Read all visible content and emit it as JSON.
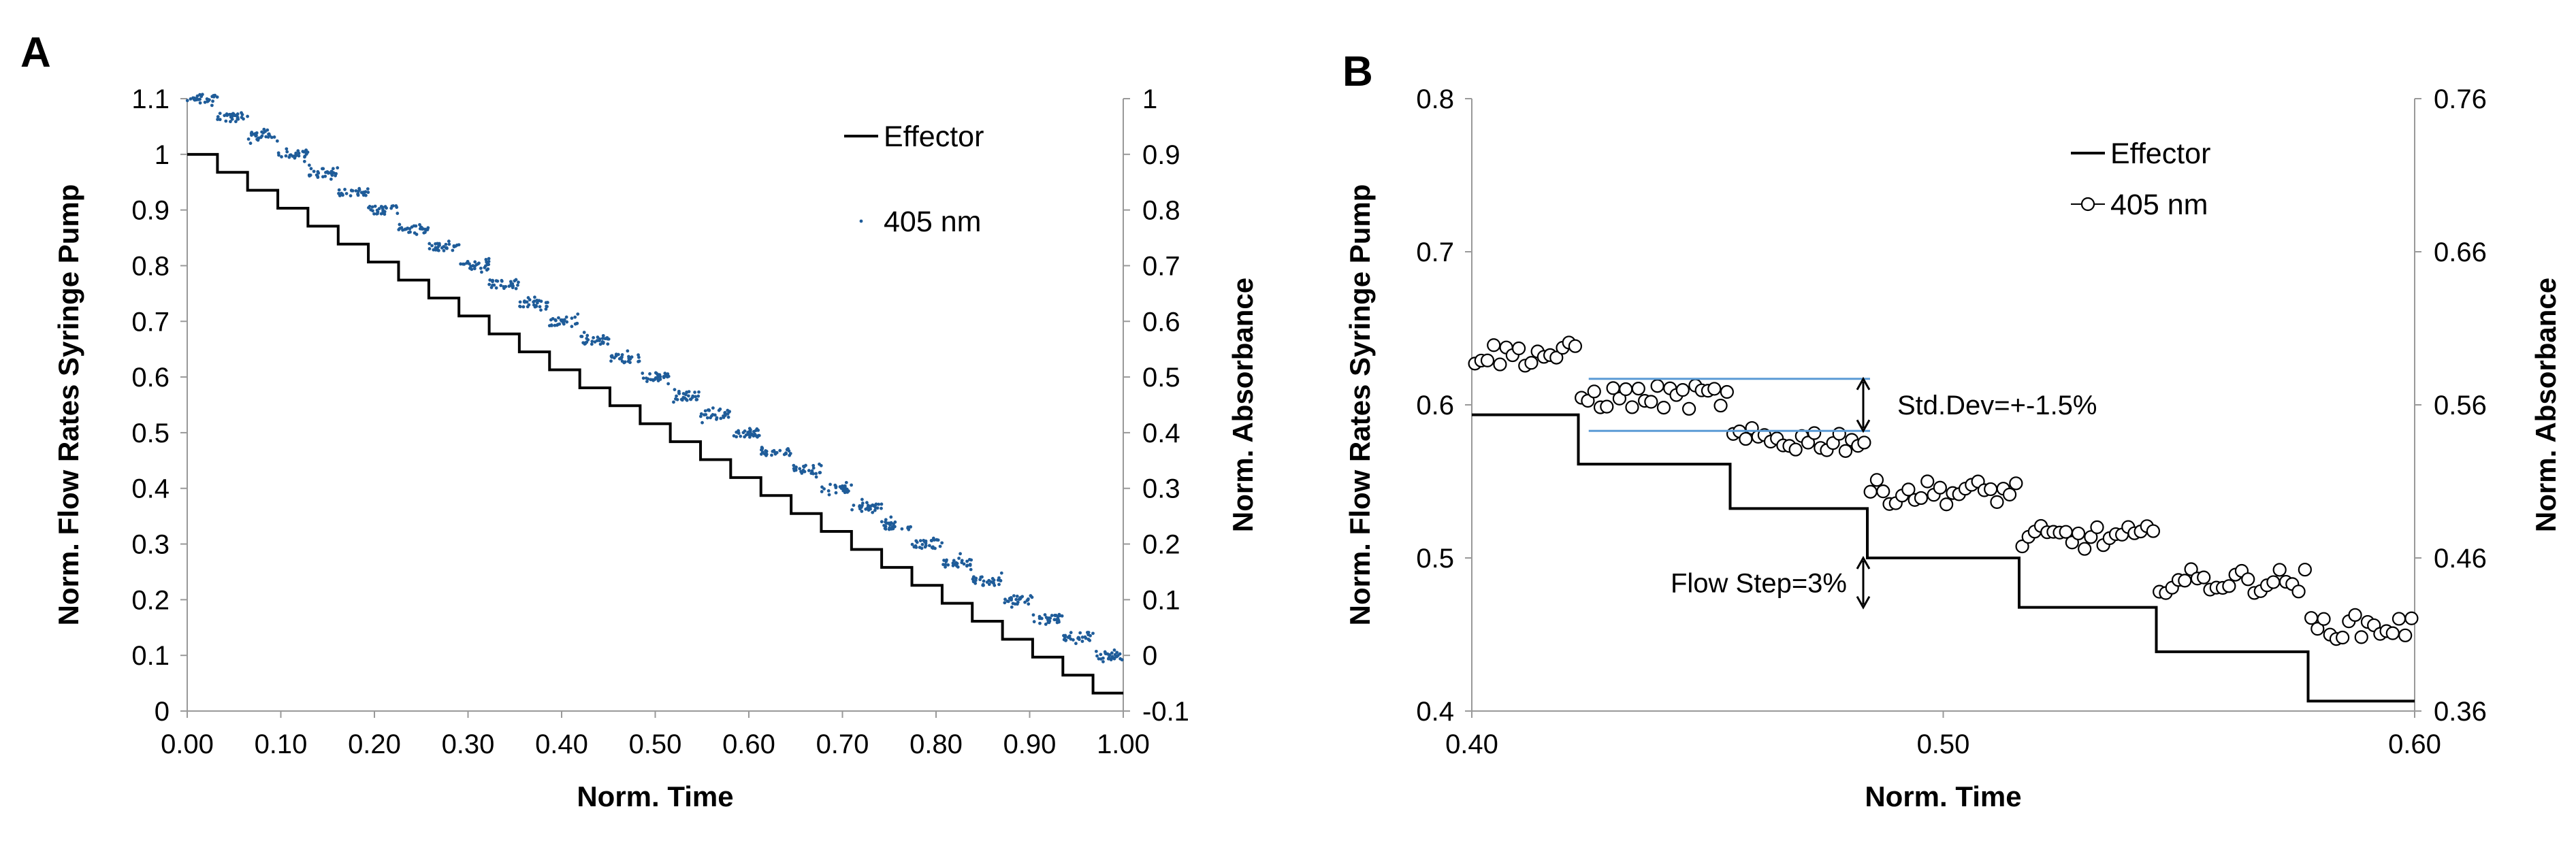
{
  "colors": {
    "effector": "#000000",
    "absorbance_a": "#1f5c99",
    "absorbance_b_fill": "#ffffff",
    "absorbance_b_stroke": "#000000",
    "annotation_line": "#5b9bd5"
  },
  "chart_data": [
    {
      "panel_label": "A",
      "type": "line",
      "xlabel": "Norm. Time",
      "ylabel": "Norm. Flow Rates Syringe Pump",
      "y2label": "Norm. Absorbance",
      "xlim": [
        0,
        1
      ],
      "ylim": [
        0,
        1.1
      ],
      "y2lim": [
        -0.1,
        1
      ],
      "x_ticks": [
        "0.00",
        "0.10",
        "0.20",
        "0.30",
        "0.40",
        "0.50",
        "0.60",
        "0.70",
        "0.80",
        "0.90",
        "1.00"
      ],
      "y_ticks": [
        "0",
        "0.1",
        "0.2",
        "0.3",
        "0.4",
        "0.5",
        "0.6",
        "0.7",
        "0.8",
        "0.9",
        "1",
        "1.1"
      ],
      "y2_ticks": [
        "-0.1",
        "0",
        "0.1",
        "0.2",
        "0.3",
        "0.4",
        "0.5",
        "0.6",
        "0.7",
        "0.8",
        "0.9",
        "1"
      ],
      "legend_position": "top-right",
      "series": [
        {
          "name": "Effector",
          "style": "step-line",
          "axis": "left",
          "step_x": [
            0.0,
            0.0323,
            0.0645,
            0.0968,
            0.129,
            0.1613,
            0.1935,
            0.2258,
            0.2581,
            0.2903,
            0.3226,
            0.3548,
            0.3871,
            0.4194,
            0.4516,
            0.4839,
            0.5161,
            0.5484,
            0.5806,
            0.6129,
            0.6452,
            0.6774,
            0.7097,
            0.7419,
            0.7742,
            0.8065,
            0.8387,
            0.871,
            0.9032,
            0.9355,
            0.9677,
            1.0
          ],
          "step_y": [
            1.0,
            0.9677,
            0.9355,
            0.9032,
            0.871,
            0.8387,
            0.8065,
            0.7742,
            0.7419,
            0.7097,
            0.6774,
            0.6452,
            0.6129,
            0.5806,
            0.5484,
            0.5161,
            0.4839,
            0.4516,
            0.4194,
            0.3871,
            0.3548,
            0.3226,
            0.2903,
            0.2581,
            0.2258,
            0.1935,
            0.1613,
            0.129,
            0.0968,
            0.0645,
            0.0323,
            0.0
          ]
        },
        {
          "name": "405 nm",
          "style": "scatter-dots",
          "axis": "right",
          "steps": 31,
          "y2_start": 1.0,
          "y2_end": 0.0,
          "noise": 0.008
        }
      ]
    },
    {
      "panel_label": "B",
      "type": "line",
      "xlabel": "Norm. Time",
      "ylabel": "Norm. Flow Rates Syringe Pump",
      "y2label": "Norm. Absorbance",
      "xlim": [
        0.4,
        0.6
      ],
      "ylim": [
        0.4,
        0.8
      ],
      "y2lim": [
        0.36,
        0.76
      ],
      "x_ticks": [
        "0.40",
        "0.50",
        "0.60"
      ],
      "y_ticks": [
        "0.4",
        "0.5",
        "0.6",
        "0.7",
        "0.8"
      ],
      "y2_ticks": [
        "0.36",
        "0.46",
        "0.56",
        "0.66",
        "0.76"
      ],
      "legend_position": "top-right",
      "series": [
        {
          "name": "Effector",
          "style": "step-line",
          "axis": "left",
          "step_x": [
            0.4,
            0.4226,
            0.4548,
            0.4839,
            0.5161,
            0.5452,
            0.5774,
            0.6
          ],
          "step_y": [
            0.5935,
            0.5613,
            0.5323,
            0.5,
            0.4677,
            0.4387,
            0.4065,
            0.4065
          ]
        },
        {
          "name": "405 nm",
          "style": "open-circles",
          "axis": "right",
          "segments": [
            {
              "x0": 0.4,
              "x1": 0.4226,
              "y2": 0.593
            },
            {
              "x0": 0.4226,
              "x1": 0.4548,
              "y2": 0.565
            },
            {
              "x0": 0.4548,
              "x1": 0.4839,
              "y2": 0.537
            },
            {
              "x0": 0.4839,
              "x1": 0.5161,
              "y2": 0.503
            },
            {
              "x0": 0.5161,
              "x1": 0.5452,
              "y2": 0.473
            },
            {
              "x0": 0.5452,
              "x1": 0.5774,
              "y2": 0.445
            },
            {
              "x0": 0.5774,
              "x1": 0.6,
              "y2": 0.415
            }
          ],
          "noise": 0.008
        }
      ],
      "annotations": [
        {
          "text": "Std.Dev=+-1.5%",
          "x": 0.4248,
          "x_end": 0.4548,
          "y_upper": 0.617,
          "y_lower": 0.583
        },
        {
          "text": "Flow Step=3%",
          "x": 0.4839,
          "y_upper": 0.5,
          "y_lower": 0.4677
        }
      ]
    }
  ]
}
